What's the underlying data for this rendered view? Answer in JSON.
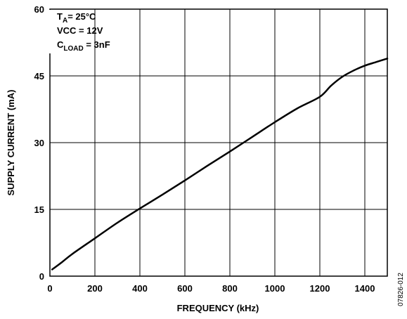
{
  "chart_data": {
    "type": "line",
    "xlabel": "FREQUENCY (kHz)",
    "ylabel": "SUPPLY CURRENT (mA)",
    "xlim": [
      0,
      1500
    ],
    "ylim": [
      0,
      60
    ],
    "x_ticks": [
      0,
      200,
      400,
      600,
      800,
      1000,
      1200,
      1400
    ],
    "x_tick_labels": [
      "0",
      "200",
      "400",
      "600",
      "800",
      "1000",
      "1200",
      "1400"
    ],
    "y_ticks": [
      0,
      15,
      30,
      45,
      60
    ],
    "y_tick_labels": [
      "0",
      "15",
      "30",
      "45",
      "60"
    ],
    "x_grid": [
      200,
      400,
      600,
      800,
      1000,
      1200,
      1400
    ],
    "y_grid": [
      15,
      30,
      45
    ],
    "grid": true,
    "annotations": {
      "ta": {
        "main": "T",
        "sub": "A",
        "rest": "= 25°C"
      },
      "vcc": "VCC = 12V",
      "cload": {
        "main": "C",
        "sub": "LOAD",
        "rest": " = 3nF"
      }
    },
    "figure_id": "07826-012",
    "series": [
      {
        "x": [
          10,
          50,
          100,
          200,
          300,
          400,
          500,
          600,
          700,
          800,
          900,
          1000,
          1100,
          1200,
          1250,
          1300,
          1350,
          1400,
          1450,
          1500
        ],
        "y": [
          1.5,
          3.0,
          5.0,
          8.5,
          12.0,
          15.2,
          18.3,
          21.5,
          24.8,
          28.0,
          31.3,
          34.6,
          37.7,
          40.3,
          42.8,
          44.8,
          46.2,
          47.3,
          48.1,
          48.9
        ]
      }
    ]
  }
}
